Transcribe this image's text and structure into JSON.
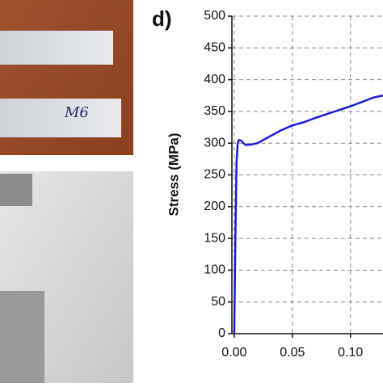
{
  "photo_annotation": "M6",
  "chart_data": {
    "type": "line",
    "panel_label": "d)",
    "y_label": "Stress (MPa)",
    "x": [
      0,
      0.001,
      0.002,
      0.003,
      0.004,
      0.006,
      0.008,
      0.01,
      0.015,
      0.02,
      0.03,
      0.04,
      0.05,
      0.06,
      0.07,
      0.08,
      0.09,
      0.1,
      0.11,
      0.12,
      0.128
    ],
    "series": [
      {
        "name": "Stress",
        "color": "#1a1adb",
        "values": [
          0,
          150,
          270,
          300,
          305,
          304,
          300,
          297,
          298,
          300,
          310,
          320,
          328,
          333,
          340,
          346,
          352,
          358,
          365,
          372,
          375
        ]
      }
    ],
    "xlim": [
      -0.002,
      0.128
    ],
    "ylim": [
      0,
      500
    ],
    "xticks": [
      {
        "value": 0,
        "label": "0.00"
      },
      {
        "value": 0.05,
        "label": "0.05"
      },
      {
        "value": 0.1,
        "label": "0.10"
      }
    ],
    "yticks": [
      0,
      50,
      100,
      150,
      200,
      250,
      300,
      350,
      400,
      450,
      500
    ],
    "grid": true
  }
}
